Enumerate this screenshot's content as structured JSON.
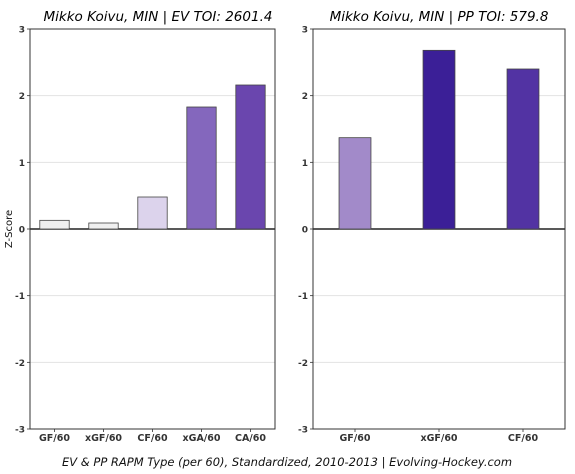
{
  "footer": "EV & PP RAPM Type (per 60), Standardized, 2010-2013    |    Evolving-Hockey.com",
  "chart_data": [
    {
      "type": "bar",
      "title": "Mikko Koivu, MIN  |  EV TOI: 2601.4",
      "ylabel": "Z-Score",
      "xlabel": "",
      "ylim": [
        -3,
        3
      ],
      "yticks": [
        -3,
        -2,
        -1,
        0,
        1,
        2,
        3
      ],
      "grid": true,
      "categories": [
        "GF/60",
        "xGF/60",
        "CF/60",
        "xGA/60",
        "CA/60"
      ],
      "values": [
        0.13,
        0.09,
        0.48,
        1.83,
        2.16
      ],
      "colors": [
        "#f0f0f0",
        "#f0f0f0",
        "#dcd3ec",
        "#8467bd",
        "#6a46ae"
      ]
    },
    {
      "type": "bar",
      "title": "Mikko Koivu, MIN  |  PP TOI: 579.8",
      "ylabel": "",
      "xlabel": "",
      "ylim": [
        -3,
        3
      ],
      "yticks": [
        -3,
        -2,
        -1,
        0,
        1,
        2,
        3
      ],
      "grid": true,
      "categories": [
        "GF/60",
        "xGF/60",
        "CF/60"
      ],
      "values": [
        1.37,
        2.68,
        2.4
      ],
      "colors": [
        "#a28ac9",
        "#3b1f97",
        "#5233a3"
      ]
    }
  ]
}
